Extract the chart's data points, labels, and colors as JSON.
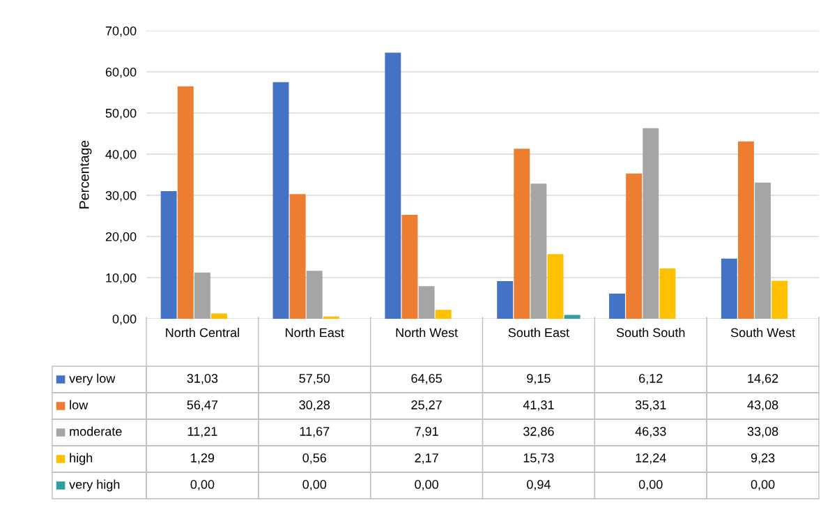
{
  "chart_data": {
    "type": "bar",
    "ylabel": "Percentage",
    "categories": [
      "North Central",
      "North East",
      "North West",
      "South East",
      "South South",
      "South West"
    ],
    "series": [
      {
        "name": "very low",
        "color": "#4472c4",
        "values": [
          31.03,
          57.5,
          64.65,
          9.15,
          6.12,
          14.62
        ],
        "value_labels": [
          "31,03",
          "57,50",
          "64,65",
          "9,15",
          "6,12",
          "14,62"
        ]
      },
      {
        "name": "low",
        "color": "#ed7d31",
        "values": [
          56.47,
          30.28,
          25.27,
          41.31,
          35.31,
          43.08
        ],
        "value_labels": [
          "56,47",
          "30,28",
          "25,27",
          "41,31",
          "35,31",
          "43,08"
        ]
      },
      {
        "name": "moderate",
        "color": "#a5a5a5",
        "values": [
          11.21,
          11.67,
          7.91,
          32.86,
          46.33,
          33.08
        ],
        "value_labels": [
          "11,21",
          "11,67",
          "7,91",
          "32,86",
          "46,33",
          "33,08"
        ]
      },
      {
        "name": "high",
        "color": "#ffc000",
        "values": [
          1.29,
          0.56,
          2.17,
          15.73,
          12.24,
          9.23
        ],
        "value_labels": [
          "1,29",
          "0,56",
          "2,17",
          "15,73",
          "12,24",
          "9,23"
        ]
      },
      {
        "name": "very high",
        "color": "#2f9fa0",
        "values": [
          0.0,
          0.0,
          0.0,
          0.94,
          0.0,
          0.0
        ],
        "value_labels": [
          "0,00",
          "0,00",
          "0,00",
          "0,94",
          "0,00",
          "0,00"
        ]
      }
    ],
    "ylim": [
      0,
      70
    ],
    "yticks": [
      {
        "value": 0,
        "label": "0,00"
      },
      {
        "value": 10,
        "label": "10,00"
      },
      {
        "value": 20,
        "label": "20,00"
      },
      {
        "value": 30,
        "label": "30,00"
      },
      {
        "value": 40,
        "label": "40,00"
      },
      {
        "value": 50,
        "label": "50,00"
      },
      {
        "value": 60,
        "label": "60,00"
      },
      {
        "value": 70,
        "label": "70,00"
      }
    ],
    "grid": "y",
    "legend": "bottom left"
  }
}
